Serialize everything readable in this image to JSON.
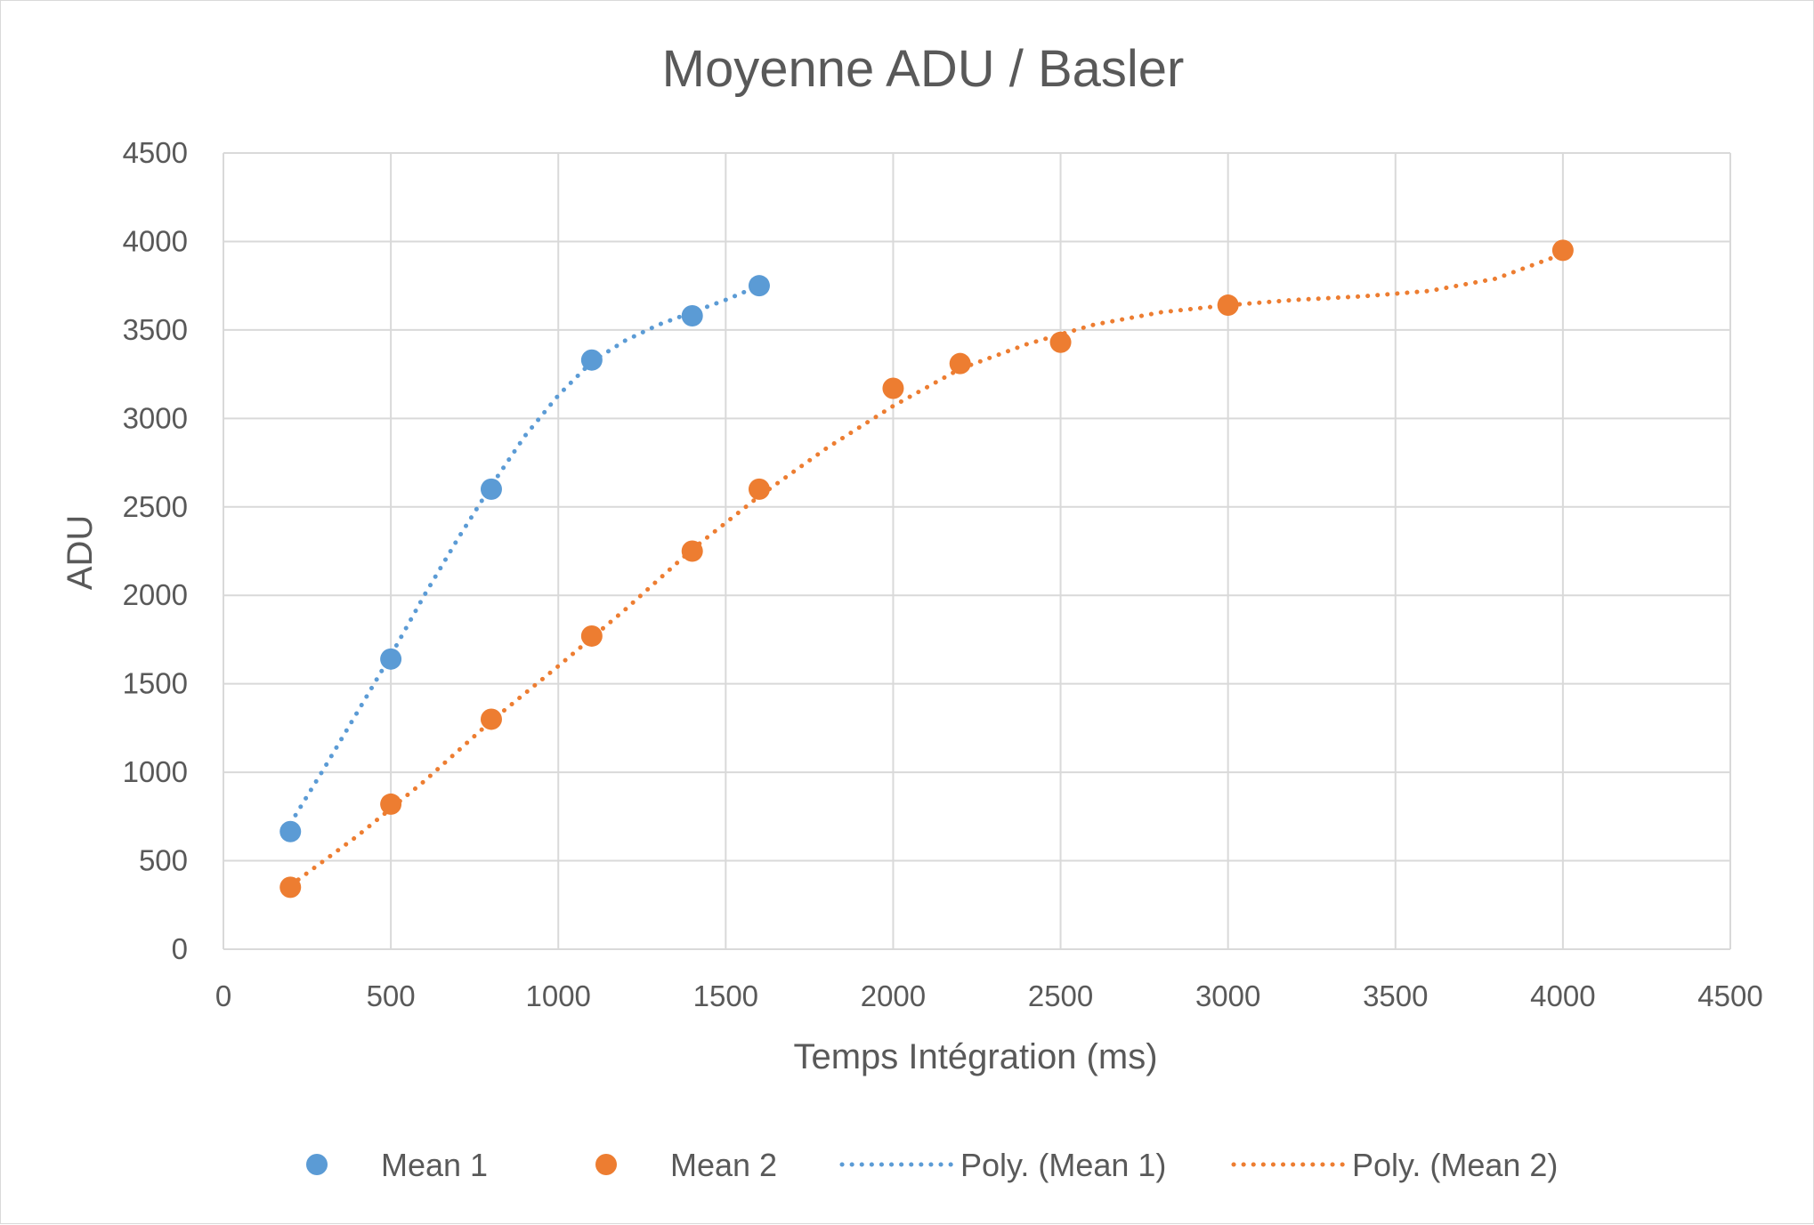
{
  "chart_data": {
    "type": "scatter",
    "title": "Moyenne ADU / Basler",
    "xlabel": "Temps Intégration (ms)",
    "ylabel": "ADU",
    "xlim": [
      0,
      4500
    ],
    "ylim": [
      0,
      4500
    ],
    "xticks": [
      "0",
      "500",
      "1000",
      "1500",
      "2000",
      "2500",
      "3000",
      "3500",
      "4000",
      "4500"
    ],
    "yticks": [
      "0",
      "500",
      "1000",
      "1500",
      "2000",
      "2500",
      "3000",
      "3500",
      "4000",
      "4500"
    ],
    "grid": true,
    "legend_position": "bottom",
    "series": [
      {
        "name": "Mean 1",
        "color": "#5b9bd5",
        "x": [
          200,
          500,
          800,
          1100,
          1400,
          1600
        ],
        "y": [
          665,
          1640,
          2600,
          3330,
          3580,
          3750
        ],
        "trendline": {
          "name": "Poly. (Mean 1)",
          "kind": "polynomial",
          "x": [
            200,
            300,
            400,
            500,
            600,
            700,
            800,
            900,
            1000,
            1100,
            1200,
            1300,
            1400,
            1500,
            1600
          ],
          "y": [
            710,
            1020,
            1340,
            1660,
            2000,
            2320,
            2620,
            2900,
            3130,
            3320,
            3440,
            3530,
            3600,
            3670,
            3750
          ]
        }
      },
      {
        "name": "Mean 2",
        "color": "#ed7d31",
        "x": [
          200,
          500,
          800,
          1100,
          1400,
          1600,
          2000,
          2200,
          2500,
          3000,
          4000
        ],
        "y": [
          350,
          820,
          1300,
          1770,
          2250,
          2600,
          3170,
          3310,
          3430,
          3640,
          3950
        ],
        "trendline": {
          "name": "Poly. (Mean 2)",
          "kind": "polynomial",
          "x": [
            200,
            400,
            600,
            800,
            1000,
            1200,
            1400,
            1600,
            1800,
            2000,
            2200,
            2400,
            2600,
            2800,
            3000,
            3200,
            3400,
            3600,
            3800,
            4000
          ],
          "y": [
            360,
            640,
            950,
            1290,
            1600,
            1920,
            2260,
            2560,
            2830,
            3070,
            3280,
            3420,
            3530,
            3600,
            3640,
            3670,
            3690,
            3720,
            3790,
            3930
          ]
        }
      }
    ]
  }
}
